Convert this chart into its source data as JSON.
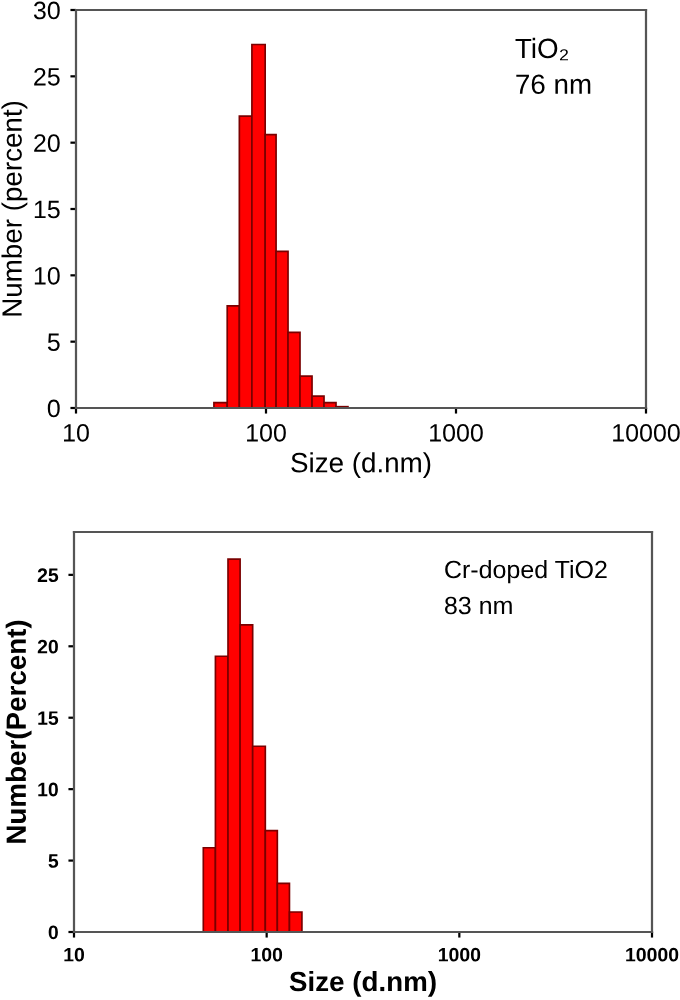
{
  "chart_data": [
    {
      "type": "histogram",
      "xlabel": "Size (d.nm)",
      "ylabel": "Number (percent)",
      "annotations": [
        "TiO₂",
        "76 nm"
      ],
      "log": "x",
      "xlim": [
        10,
        10000
      ],
      "xticks": [
        10,
        100,
        1000,
        10000
      ],
      "ylim": [
        0,
        30
      ],
      "yticks": [
        0,
        5,
        10,
        15,
        20,
        25,
        30
      ],
      "color": "#ff0000",
      "bins": [
        53.2,
        62.5,
        72.4,
        84.3,
        99,
        113,
        130.6,
        151,
        174.7,
        202,
        233.6,
        270
      ],
      "values": [
        0.4,
        7.7,
        22,
        27.4,
        20.6,
        11.8,
        5.7,
        2.4,
        0.9,
        0.4,
        0.1
      ],
      "grid": false
    },
    {
      "type": "histogram",
      "xlabel": "Size (d.nm)",
      "ylabel": "Number(Percent)",
      "annotations": [
        "Cr-doped TiO2",
        "83 nm"
      ],
      "log": "x",
      "xlim": [
        10,
        10000
      ],
      "xticks": [
        10,
        100,
        1000,
        10000
      ],
      "ylim": [
        0,
        28
      ],
      "yticks": [
        0,
        5,
        10,
        15,
        20,
        25
      ],
      "color": "#ff0000",
      "bins": [
        46.9,
        54.2,
        63.0,
        72.8,
        84.6,
        98.4,
        113.6,
        131.3,
        152.4
      ],
      "values": [
        5.9,
        19.3,
        26.1,
        21.5,
        13.0,
        7.1,
        3.4,
        1.4
      ],
      "grid": false
    }
  ]
}
